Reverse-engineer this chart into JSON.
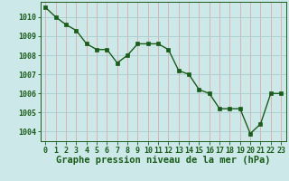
{
  "x": [
    0,
    1,
    2,
    3,
    4,
    5,
    6,
    7,
    8,
    9,
    10,
    11,
    12,
    13,
    14,
    15,
    16,
    17,
    18,
    19,
    20,
    21,
    22,
    23
  ],
  "y": [
    1010.5,
    1010.0,
    1009.6,
    1009.3,
    1008.6,
    1008.3,
    1008.3,
    1007.6,
    1008.0,
    1008.6,
    1008.6,
    1008.6,
    1008.3,
    1007.2,
    1007.0,
    1006.2,
    1006.0,
    1005.2,
    1005.2,
    1005.2,
    1003.9,
    1004.4,
    1006.0,
    1006.0
  ],
  "line_color": "#1a5c1a",
  "marker_color": "#1a5c1a",
  "bg_color": "#cce8e8",
  "grid_color": "#aacccc",
  "xlabel": "Graphe pression niveau de la mer (hPa)",
  "text_color": "#1a5c1a",
  "ylabel_ticks": [
    1004,
    1005,
    1006,
    1007,
    1008,
    1009,
    1010
  ],
  "xlim": [
    -0.5,
    23.5
  ],
  "ylim": [
    1003.5,
    1010.8
  ],
  "xlabel_fontsize": 7.5,
  "tick_fontsize": 6.0
}
